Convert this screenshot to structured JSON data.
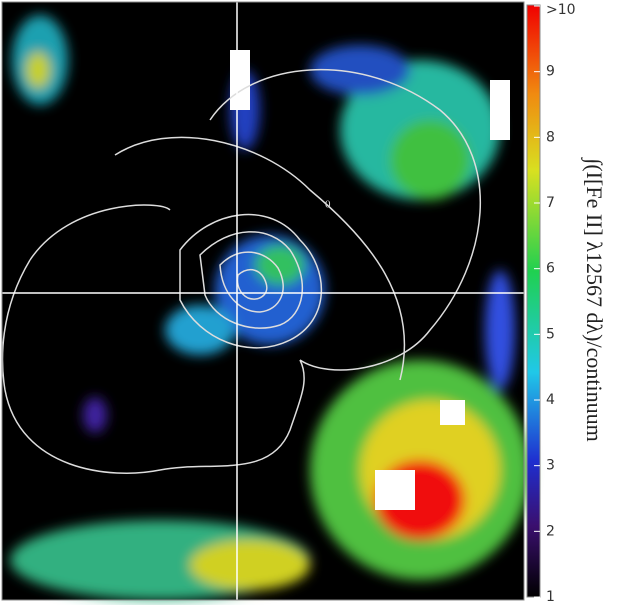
{
  "chart_data": {
    "type": "colormap",
    "colorbar_label": "∫(I[Fe II] λ12567 dλ)/continuum",
    "contour_label": "0",
    "clim": [
      1,
      10
    ],
    "cticks": [
      1,
      2,
      3,
      4,
      5,
      6,
      7,
      8,
      9,
      {
        "value": 10,
        "label": ">10"
      }
    ]
  }
}
